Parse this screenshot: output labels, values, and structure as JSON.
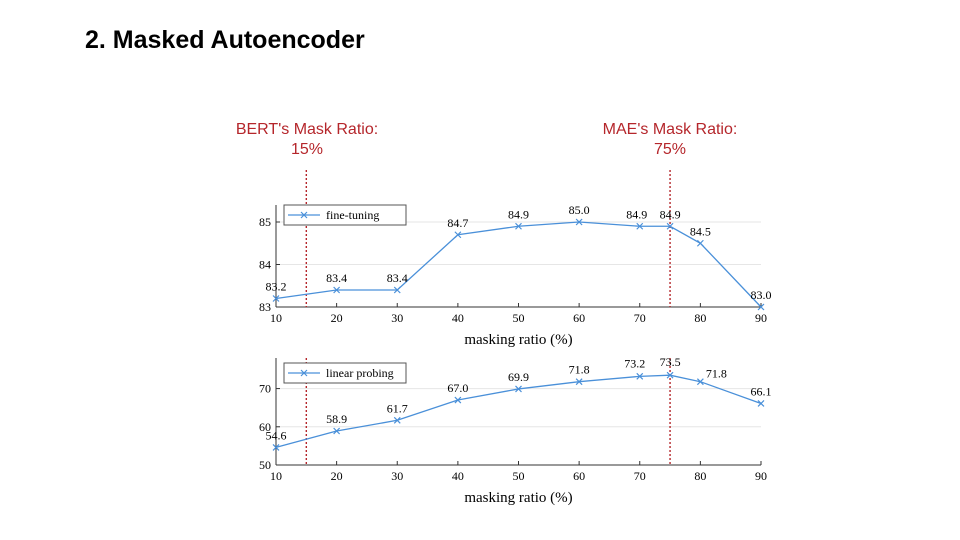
{
  "slide": {
    "title": "2. Masked Autoencoder"
  },
  "annotations": {
    "bert": {
      "line1": "BERT's Mask Ratio:",
      "line2": "15%",
      "x_value": 15
    },
    "mae": {
      "line1": "MAE's Mask Ratio:",
      "line2": "75%",
      "x_value": 75
    }
  },
  "colors": {
    "series": "#4a90d9",
    "annotation": "#b5262b",
    "axis": "#333333",
    "grid": "#e6e6e6"
  },
  "chart_data": [
    {
      "type": "line",
      "xlabel": "masking ratio (%)",
      "ylabel": "",
      "x": [
        10,
        20,
        30,
        40,
        50,
        60,
        70,
        75,
        80,
        90
      ],
      "xticks": [
        10,
        20,
        30,
        40,
        50,
        60,
        70,
        80,
        90
      ],
      "xlim": [
        10,
        90
      ],
      "ylim": [
        83,
        85.4
      ],
      "yticks": [
        83,
        84,
        85
      ],
      "grid": true,
      "legend": "top-left",
      "series": [
        {
          "name": "fine-tuning",
          "values": [
            83.2,
            83.4,
            83.4,
            84.7,
            84.9,
            85.0,
            84.9,
            84.9,
            84.5,
            83.0
          ],
          "labels": [
            "83.2",
            "83.4",
            "83.4",
            "84.7",
            "84.9",
            "85.0",
            "84.9",
            "84.9",
            "84.5",
            "83.0"
          ]
        }
      ]
    },
    {
      "type": "line",
      "xlabel": "masking ratio (%)",
      "ylabel": "",
      "x": [
        10,
        20,
        30,
        40,
        50,
        60,
        70,
        75,
        80,
        90
      ],
      "xticks": [
        10,
        20,
        30,
        40,
        50,
        60,
        70,
        80,
        90
      ],
      "xlim": [
        10,
        90
      ],
      "ylim": [
        50,
        78
      ],
      "yticks": [
        50,
        60,
        70
      ],
      "grid": true,
      "legend": "top-left",
      "series": [
        {
          "name": "linear probing",
          "values": [
            54.6,
            58.9,
            61.7,
            67.0,
            69.9,
            71.8,
            73.2,
            73.5,
            71.8,
            66.1
          ],
          "labels": [
            "54.6",
            "58.9",
            "61.7",
            "67.0",
            "69.9",
            "71.8",
            "73.2",
            "73.5",
            "71.8",
            "66.1"
          ]
        }
      ]
    }
  ]
}
